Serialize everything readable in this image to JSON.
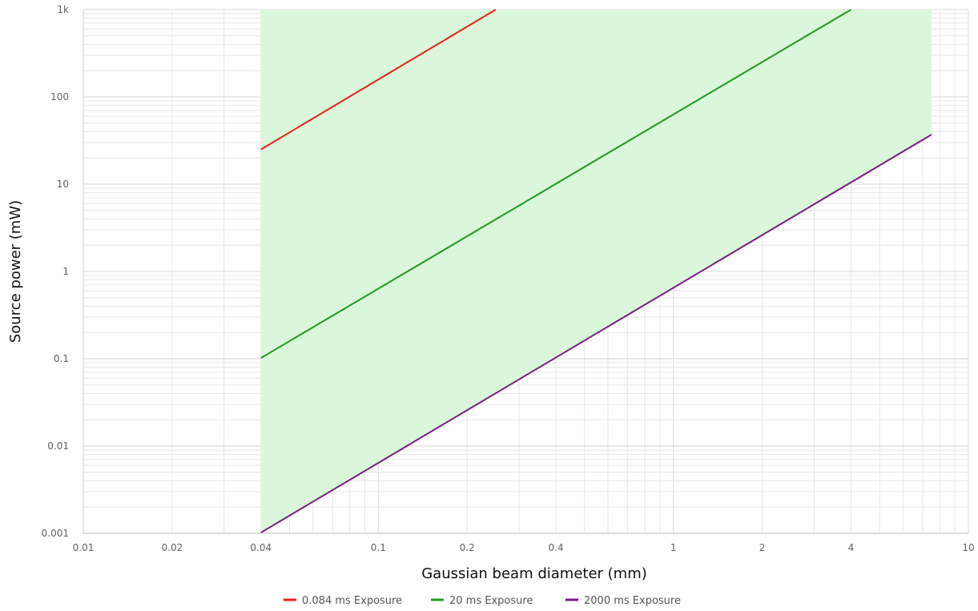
{
  "chart_data": {
    "type": "line",
    "xlabel": "Gaussian beam diameter (mm)",
    "ylabel": "Source power (mW)",
    "x_scale": "log",
    "y_scale": "log",
    "xlim": [
      0.01,
      10
    ],
    "ylim": [
      0.001,
      1000
    ],
    "x_tick_labels": [
      {
        "value": 0.01,
        "label": "0.01"
      },
      {
        "value": 0.02,
        "label": "0.02"
      },
      {
        "value": 0.04,
        "label": "0.04"
      },
      {
        "value": 0.1,
        "label": "0.1"
      },
      {
        "value": 0.2,
        "label": "0.2"
      },
      {
        "value": 0.4,
        "label": "0.4"
      },
      {
        "value": 1,
        "label": "1"
      },
      {
        "value": 2,
        "label": "2"
      },
      {
        "value": 4,
        "label": "4"
      },
      {
        "value": 10,
        "label": "10"
      }
    ],
    "y_tick_labels": [
      {
        "value": 0.001,
        "label": "0.001"
      },
      {
        "value": 0.01,
        "label": "0.01"
      },
      {
        "value": 0.1,
        "label": "0.1"
      },
      {
        "value": 1,
        "label": "1"
      },
      {
        "value": 10,
        "label": "10"
      },
      {
        "value": 100,
        "label": "100"
      },
      {
        "value": 1000,
        "label": "1k"
      }
    ],
    "grid": "on (major and minor)",
    "legend_position": "bottom-center",
    "shaded_region": {
      "x": [
        0.04,
        7.5
      ],
      "between": [
        "2000 ms Exposure",
        "top of plot"
      ],
      "color": "#dbf7db"
    },
    "series": [
      {
        "name": "0.084 ms Exposure",
        "color": "#e8231c",
        "x": [
          0.04,
          0.25
        ],
        "y": [
          25,
          1000
        ]
      },
      {
        "name": "20 ms Exposure",
        "color": "#229a22",
        "x": [
          0.04,
          4.0
        ],
        "y": [
          0.102,
          1000
        ]
      },
      {
        "name": "2000 ms Exposure",
        "color": "#7a1a86",
        "x": [
          0.04,
          7.5
        ],
        "y": [
          0.00102,
          37
        ]
      }
    ]
  }
}
